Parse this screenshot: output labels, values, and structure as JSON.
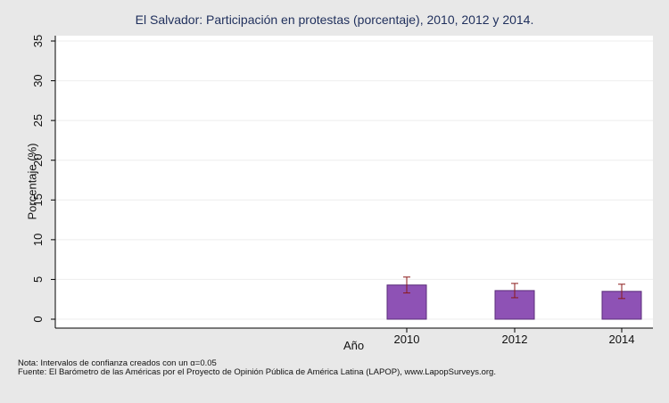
{
  "chart_data": {
    "type": "bar",
    "title": "El Salvador: Participación en protestas (porcentaje), 2010, 2012 y 2014.",
    "xlabel": "Año",
    "ylabel": "Porcentaje (%)",
    "categories": [
      "2010",
      "2012",
      "2014"
    ],
    "values": [
      4.3,
      3.6,
      3.5
    ],
    "ci_lower": [
      3.3,
      2.7,
      2.6
    ],
    "ci_upper": [
      5.3,
      4.5,
      4.4
    ],
    "ylim": [
      0,
      35
    ],
    "yticks": [
      0,
      5,
      10,
      15,
      20,
      25,
      30,
      35
    ],
    "grid": true,
    "bar_color": "#8e52b5",
    "errorbar_color": "#8b1a1a"
  },
  "footer": {
    "note": "Nota: Intervalos de confianza creados con un α=0.05",
    "source": "Fuente: El Barómetro de las Américas por el Proyecto de Opinión Pública de América Latina (LAPOP), www.LapopSurveys.org."
  }
}
